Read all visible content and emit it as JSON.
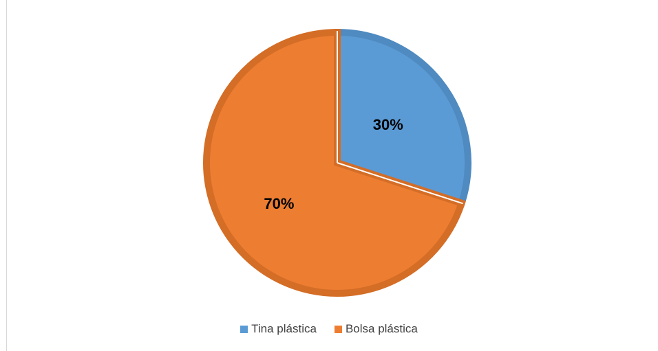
{
  "chart_data": {
    "type": "pie",
    "categories": [
      "Tina plástica",
      "Bolsa plástica"
    ],
    "values": [
      30,
      70
    ],
    "data_labels": [
      "30%",
      "70%"
    ],
    "colors": [
      "#5b9bd5",
      "#ed7d31"
    ],
    "edge_colors": [
      "#4f8ac0",
      "#d46d26"
    ],
    "legend_position": "bottom",
    "start_angle": "12 o'clock",
    "direction": "clockwise"
  },
  "legend": {
    "items": [
      {
        "label": "Tina plástica",
        "color": "#5b9bd5"
      },
      {
        "label": "Bolsa plástica",
        "color": "#ed7d31"
      }
    ]
  }
}
